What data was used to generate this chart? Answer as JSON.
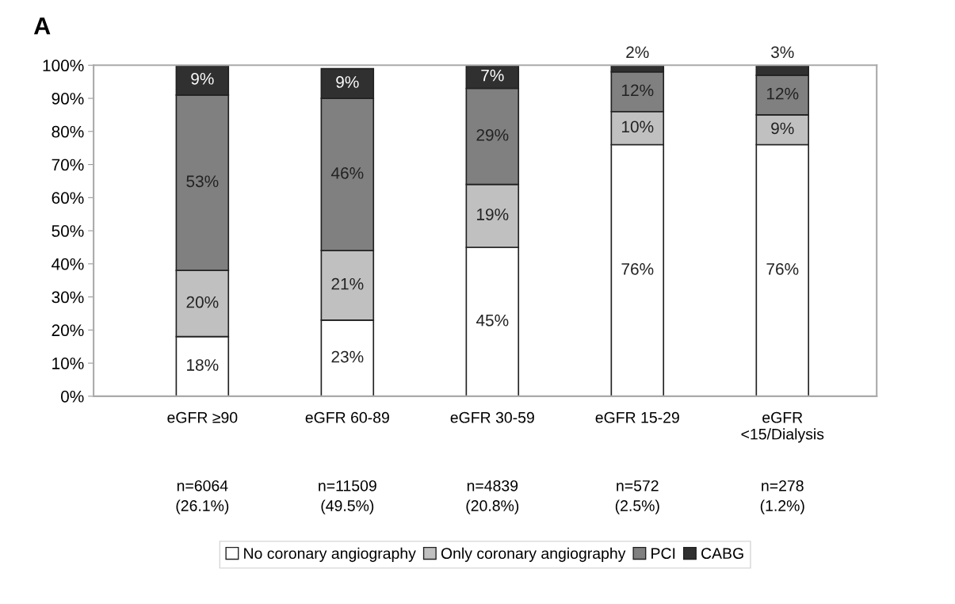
{
  "chart_data": {
    "type": "bar",
    "stacked": true,
    "title": "A",
    "categories": [
      "eGFR ≥90",
      "eGFR 60-89",
      "eGFR 30-59",
      "eGFR 15-29",
      "eGFR\n<15/Dialysis"
    ],
    "series": [
      {
        "name": "No coronary angiography",
        "color": "#ffffff",
        "values": [
          18,
          23,
          45,
          76,
          76
        ],
        "value_labels": [
          "18%",
          "23%",
          "45%",
          "76%",
          "76%"
        ]
      },
      {
        "name": "Only coronary angiography",
        "color": "#c0c0c0",
        "values": [
          20,
          21,
          19,
          10,
          9
        ],
        "value_labels": [
          "20%",
          "21%",
          "19%",
          "10%",
          "9%"
        ]
      },
      {
        "name": "PCI",
        "color": "#808080",
        "values": [
          53,
          46,
          29,
          12,
          12
        ],
        "value_labels": [
          "53%",
          "46%",
          "29%",
          "12%",
          "12%"
        ]
      },
      {
        "name": "CABG",
        "color": "#303030",
        "values": [
          9,
          9,
          7,
          2,
          3
        ],
        "value_labels": [
          "9%",
          "9%",
          "7%",
          "2%",
          "3%"
        ]
      }
    ],
    "ylim": [
      0,
      100
    ],
    "yticks": [
      {
        "value": 0,
        "label": "0%"
      },
      {
        "value": 10,
        "label": "10%"
      },
      {
        "value": 20,
        "label": "20%"
      },
      {
        "value": 30,
        "label": "30%"
      },
      {
        "value": 40,
        "label": "40%"
      },
      {
        "value": 50,
        "label": "50%"
      },
      {
        "value": 60,
        "label": "60%"
      },
      {
        "value": 70,
        "label": "70%"
      },
      {
        "value": 80,
        "label": "80%"
      },
      {
        "value": 90,
        "label": "90%"
      },
      {
        "value": 100,
        "label": "100%"
      }
    ],
    "annotations": [
      "n=6064\n(26.1%)",
      "n=11509\n(49.5%)",
      "n=4839\n(20.8%)",
      "n=572\n(2.5%)",
      "n=278\n(1.2%)"
    ],
    "grid": false,
    "legend": "bottom"
  }
}
